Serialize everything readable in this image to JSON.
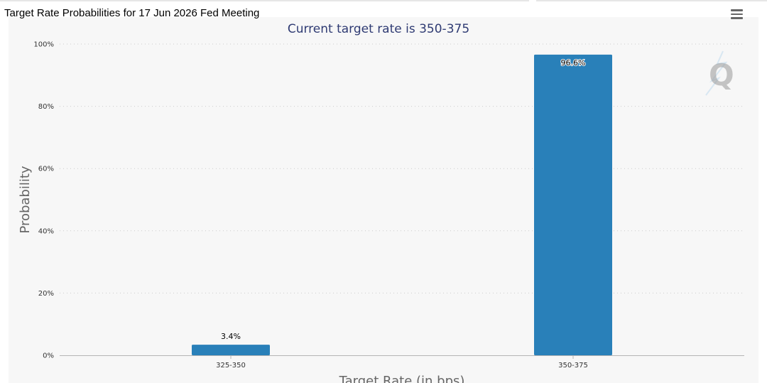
{
  "page": {
    "heading": "Target Rate Probabilities for 17 Jun 2026 Fed Meeting"
  },
  "toolbar": {
    "menu_icon": "hamburger-menu-icon"
  },
  "watermark": {
    "icon": "q-logo-icon",
    "letter": "Q"
  },
  "colors": {
    "bar": "#2980b9",
    "title": "#2f3b73",
    "grid": "#cccccc"
  },
  "chart_data": {
    "type": "bar",
    "title": "Current target rate is 350-375",
    "xlabel": "Target Rate (in bps)",
    "ylabel": "Probability",
    "categories": [
      "325-350",
      "350-375"
    ],
    "values": [
      3.4,
      96.6
    ],
    "value_labels": [
      "3.4%",
      "96.6%"
    ],
    "ylim": [
      0,
      100
    ],
    "yticks": [
      0,
      20,
      40,
      60,
      80,
      100
    ],
    "ytick_labels": [
      "0%",
      "20%",
      "40%",
      "60%",
      "80%",
      "100%"
    ],
    "grid": true,
    "legend": "none"
  }
}
